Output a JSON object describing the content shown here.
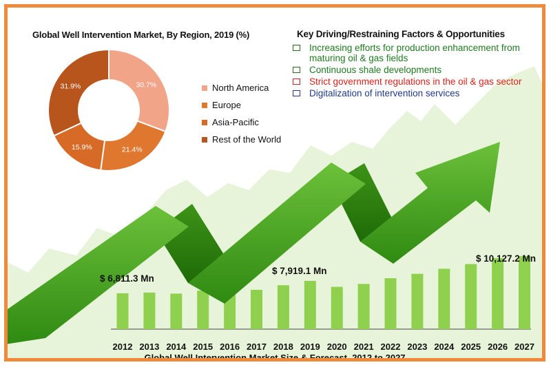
{
  "colors": {
    "frame": "#f08a3a",
    "bars": "#8fd14f",
    "arrow": "#4caa1c",
    "background_area": "#e8f4d9"
  },
  "header": {
    "pie_title": "Global Well Intervention Market, By Region, 2019 (%)",
    "factors_title": "Key Driving/Restraining Factors & Opportunities"
  },
  "factors": [
    {
      "text": "Increasing efforts for production enhancement from maturing oil & gas fields",
      "color": "#1f7a1f"
    },
    {
      "text": "Continuous shale developments",
      "color": "#1f7a1f"
    },
    {
      "text": "Strict government regulations in the oil & gas sector",
      "color": "#e0201a"
    },
    {
      "text": "Digitalization of intervention services",
      "color": "#1f3a8a"
    }
  ],
  "chart_data": [
    {
      "type": "pie",
      "title": "Global Well Intervention Market, By Region, 2019 (%)",
      "donut": true,
      "slices": [
        {
          "label": "North America",
          "value": 30.7,
          "value_label": "30.7%",
          "color": "#f2a488"
        },
        {
          "label": "Europe",
          "value": 21.4,
          "value_label": "21.4%",
          "color": "#e0772e"
        },
        {
          "label": "Asia-Pacific",
          "value": 15.9,
          "value_label": "15.9%",
          "color": "#d66a26"
        },
        {
          "label": "Rest of the World",
          "value": 31.9,
          "value_label": "31.9%",
          "color": "#b8551c"
        }
      ],
      "legend_position": "right"
    },
    {
      "type": "bar",
      "title": "Global Well Intervention Market Size & Forecast, 2012 to 2027",
      "categories": [
        "2012",
        "2013",
        "2014",
        "2015",
        "2016",
        "2017",
        "2018",
        "2019",
        "2020",
        "2021",
        "2022",
        "2023",
        "2024",
        "2025",
        "2026",
        "2027"
      ],
      "values": [
        6811.3,
        6870,
        6780,
        7050,
        6880,
        7120,
        7530,
        7919.1,
        7380,
        7650,
        8150,
        8550,
        9000,
        9420,
        9950,
        10127.2
      ],
      "ylim": [
        0,
        10500
      ],
      "grid": false,
      "annotations": [
        {
          "category": "2012",
          "label": "$ 6,811.3 Mn"
        },
        {
          "category": "2019",
          "label": "$ 7,919.1 Mn"
        },
        {
          "category": "2027",
          "label": "$ 10,127.2 Mn"
        }
      ]
    }
  ]
}
